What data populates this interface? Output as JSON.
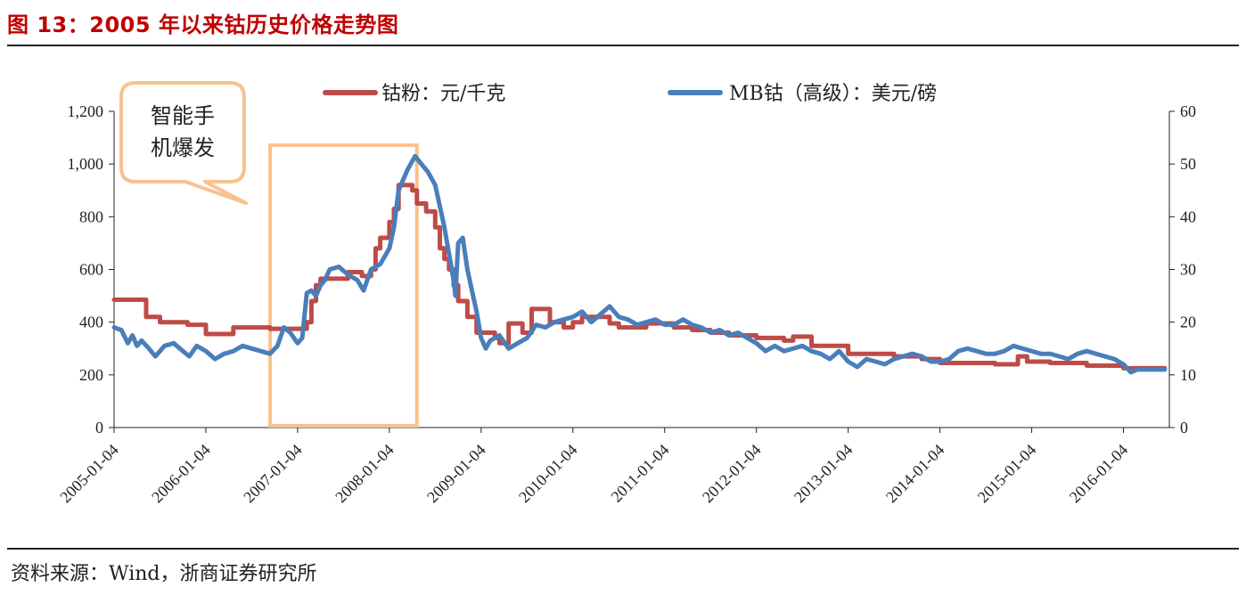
{
  "figure": {
    "title": "图 13：2005 年以来钴历史价格走势图",
    "source": "资料来源：Wind，浙商证券研究所"
  },
  "chart_data": {
    "type": "line",
    "title": "",
    "x_ticks": [
      "2005-01-04",
      "2006-01-04",
      "2007-01-04",
      "2008-01-04",
      "2009-01-04",
      "2010-01-04",
      "2011-01-04",
      "2012-01-04",
      "2013-01-04",
      "2014-01-04",
      "2015-01-04",
      "2016-01-04"
    ],
    "xlim": [
      2005.0,
      2016.5
    ],
    "left_axis": {
      "ylim": [
        0,
        1200
      ],
      "ticks": [
        "0",
        "200",
        "400",
        "600",
        "800",
        "1,000",
        "1,200"
      ]
    },
    "right_axis": {
      "ylim": [
        0,
        60
      ],
      "ticks": [
        "0",
        "10",
        "20",
        "30",
        "40",
        "50",
        "60"
      ]
    },
    "legend_position": "top",
    "series": [
      {
        "name": "钴粉：元/千克",
        "axis": "left",
        "color": "#be4b48",
        "points": [
          [
            2005.0,
            485
          ],
          [
            2005.35,
            485
          ],
          [
            2005.35,
            420
          ],
          [
            2005.5,
            420
          ],
          [
            2005.5,
            400
          ],
          [
            2005.8,
            400
          ],
          [
            2005.8,
            390
          ],
          [
            2006.0,
            390
          ],
          [
            2006.0,
            355
          ],
          [
            2006.3,
            355
          ],
          [
            2006.3,
            380
          ],
          [
            2006.7,
            380
          ],
          [
            2006.7,
            375
          ],
          [
            2007.1,
            375
          ],
          [
            2007.1,
            400
          ],
          [
            2007.15,
            400
          ],
          [
            2007.15,
            480
          ],
          [
            2007.2,
            480
          ],
          [
            2007.2,
            540
          ],
          [
            2007.25,
            540
          ],
          [
            2007.25,
            565
          ],
          [
            2007.55,
            565
          ],
          [
            2007.55,
            590
          ],
          [
            2007.7,
            590
          ],
          [
            2007.7,
            575
          ],
          [
            2007.8,
            575
          ],
          [
            2007.8,
            600
          ],
          [
            2007.85,
            600
          ],
          [
            2007.85,
            680
          ],
          [
            2007.9,
            680
          ],
          [
            2007.9,
            720
          ],
          [
            2008.0,
            720
          ],
          [
            2008.0,
            780
          ],
          [
            2008.05,
            780
          ],
          [
            2008.05,
            830
          ],
          [
            2008.1,
            830
          ],
          [
            2008.1,
            920
          ],
          [
            2008.25,
            920
          ],
          [
            2008.25,
            900
          ],
          [
            2008.3,
            900
          ],
          [
            2008.3,
            850
          ],
          [
            2008.4,
            850
          ],
          [
            2008.4,
            820
          ],
          [
            2008.5,
            820
          ],
          [
            2008.5,
            760
          ],
          [
            2008.55,
            760
          ],
          [
            2008.55,
            680
          ],
          [
            2008.6,
            680
          ],
          [
            2008.6,
            640
          ],
          [
            2008.65,
            640
          ],
          [
            2008.65,
            600
          ],
          [
            2008.7,
            600
          ],
          [
            2008.7,
            540
          ],
          [
            2008.75,
            540
          ],
          [
            2008.75,
            480
          ],
          [
            2008.85,
            480
          ],
          [
            2008.85,
            420
          ],
          [
            2008.95,
            420
          ],
          [
            2008.95,
            360
          ],
          [
            2009.15,
            360
          ],
          [
            2009.15,
            340
          ],
          [
            2009.2,
            340
          ],
          [
            2009.2,
            320
          ],
          [
            2009.3,
            320
          ],
          [
            2009.3,
            395
          ],
          [
            2009.45,
            395
          ],
          [
            2009.45,
            360
          ],
          [
            2009.55,
            360
          ],
          [
            2009.55,
            450
          ],
          [
            2009.75,
            450
          ],
          [
            2009.75,
            400
          ],
          [
            2009.9,
            400
          ],
          [
            2009.9,
            380
          ],
          [
            2010.0,
            380
          ],
          [
            2010.0,
            400
          ],
          [
            2010.1,
            400
          ],
          [
            2010.1,
            420
          ],
          [
            2010.4,
            420
          ],
          [
            2010.4,
            395
          ],
          [
            2010.5,
            395
          ],
          [
            2010.5,
            380
          ],
          [
            2010.8,
            380
          ],
          [
            2010.8,
            395
          ],
          [
            2011.1,
            395
          ],
          [
            2011.1,
            380
          ],
          [
            2011.3,
            380
          ],
          [
            2011.3,
            370
          ],
          [
            2011.5,
            370
          ],
          [
            2011.5,
            360
          ],
          [
            2011.7,
            360
          ],
          [
            2011.7,
            350
          ],
          [
            2012.0,
            350
          ],
          [
            2012.0,
            340
          ],
          [
            2012.3,
            340
          ],
          [
            2012.3,
            330
          ],
          [
            2012.4,
            330
          ],
          [
            2012.4,
            345
          ],
          [
            2012.6,
            345
          ],
          [
            2012.6,
            310
          ],
          [
            2013.0,
            310
          ],
          [
            2013.0,
            280
          ],
          [
            2013.5,
            280
          ],
          [
            2013.5,
            270
          ],
          [
            2013.8,
            270
          ],
          [
            2013.8,
            260
          ],
          [
            2014.0,
            260
          ],
          [
            2014.0,
            245
          ],
          [
            2014.6,
            245
          ],
          [
            2014.6,
            240
          ],
          [
            2014.85,
            240
          ],
          [
            2014.85,
            270
          ],
          [
            2014.95,
            270
          ],
          [
            2014.95,
            250
          ],
          [
            2015.2,
            250
          ],
          [
            2015.2,
            245
          ],
          [
            2015.6,
            245
          ],
          [
            2015.6,
            235
          ],
          [
            2016.0,
            235
          ],
          [
            2016.0,
            225
          ],
          [
            2016.45,
            225
          ]
        ]
      },
      {
        "name": "MB钴（高级）：美元/磅",
        "axis": "right",
        "color": "#4a7ebb",
        "points": [
          [
            2005.0,
            19
          ],
          [
            2005.08,
            18.5
          ],
          [
            2005.15,
            16
          ],
          [
            2005.2,
            17.5
          ],
          [
            2005.25,
            15.5
          ],
          [
            2005.3,
            16.5
          ],
          [
            2005.38,
            15
          ],
          [
            2005.45,
            13.5
          ],
          [
            2005.55,
            15.5
          ],
          [
            2005.65,
            16
          ],
          [
            2005.75,
            14.5
          ],
          [
            2005.82,
            13.5
          ],
          [
            2005.9,
            15.5
          ],
          [
            2006.0,
            14.5
          ],
          [
            2006.1,
            13
          ],
          [
            2006.2,
            14
          ],
          [
            2006.3,
            14.5
          ],
          [
            2006.4,
            15.5
          ],
          [
            2006.5,
            15
          ],
          [
            2006.6,
            14.5
          ],
          [
            2006.7,
            14
          ],
          [
            2006.78,
            15.5
          ],
          [
            2006.85,
            19
          ],
          [
            2006.92,
            18
          ],
          [
            2007.0,
            16
          ],
          [
            2007.05,
            17
          ],
          [
            2007.1,
            25.5
          ],
          [
            2007.15,
            26
          ],
          [
            2007.2,
            25
          ],
          [
            2007.25,
            27
          ],
          [
            2007.3,
            28
          ],
          [
            2007.35,
            30
          ],
          [
            2007.45,
            30.5
          ],
          [
            2007.55,
            29
          ],
          [
            2007.65,
            28
          ],
          [
            2007.72,
            26
          ],
          [
            2007.8,
            30
          ],
          [
            2007.9,
            31
          ],
          [
            2008.0,
            34
          ],
          [
            2008.05,
            38
          ],
          [
            2008.1,
            45
          ],
          [
            2008.15,
            47
          ],
          [
            2008.2,
            49
          ],
          [
            2008.28,
            51.5
          ],
          [
            2008.35,
            50
          ],
          [
            2008.42,
            48.5
          ],
          [
            2008.5,
            46
          ],
          [
            2008.55,
            42
          ],
          [
            2008.6,
            38
          ],
          [
            2008.65,
            33
          ],
          [
            2008.7,
            28
          ],
          [
            2008.72,
            25
          ],
          [
            2008.75,
            35
          ],
          [
            2008.8,
            36
          ],
          [
            2008.85,
            30
          ],
          [
            2008.9,
            26
          ],
          [
            2008.95,
            22
          ],
          [
            2009.0,
            17
          ],
          [
            2009.05,
            15
          ],
          [
            2009.1,
            16.5
          ],
          [
            2009.2,
            17.5
          ],
          [
            2009.3,
            15
          ],
          [
            2009.4,
            16
          ],
          [
            2009.5,
            17
          ],
          [
            2009.6,
            19.5
          ],
          [
            2009.7,
            19
          ],
          [
            2009.8,
            20
          ],
          [
            2009.9,
            20.5
          ],
          [
            2010.0,
            21
          ],
          [
            2010.1,
            22
          ],
          [
            2010.2,
            20
          ],
          [
            2010.3,
            21.5
          ],
          [
            2010.4,
            23
          ],
          [
            2010.5,
            21
          ],
          [
            2010.6,
            20.5
          ],
          [
            2010.7,
            19.5
          ],
          [
            2010.8,
            20
          ],
          [
            2010.9,
            20.5
          ],
          [
            2011.0,
            19.5
          ],
          [
            2011.1,
            19.5
          ],
          [
            2011.2,
            20.5
          ],
          [
            2011.3,
            19.5
          ],
          [
            2011.4,
            19
          ],
          [
            2011.5,
            18
          ],
          [
            2011.6,
            18.5
          ],
          [
            2011.7,
            17.5
          ],
          [
            2011.8,
            18
          ],
          [
            2011.9,
            17
          ],
          [
            2012.0,
            16
          ],
          [
            2012.1,
            14.5
          ],
          [
            2012.2,
            15.5
          ],
          [
            2012.3,
            14.5
          ],
          [
            2012.4,
            15
          ],
          [
            2012.5,
            15.5
          ],
          [
            2012.6,
            14.5
          ],
          [
            2012.7,
            14
          ],
          [
            2012.8,
            13
          ],
          [
            2012.9,
            14.5
          ],
          [
            2013.0,
            12.5
          ],
          [
            2013.1,
            11.5
          ],
          [
            2013.2,
            13
          ],
          [
            2013.3,
            12.5
          ],
          [
            2013.4,
            12
          ],
          [
            2013.5,
            13
          ],
          [
            2013.6,
            13.5
          ],
          [
            2013.7,
            14
          ],
          [
            2013.8,
            13.5
          ],
          [
            2013.9,
            12.5
          ],
          [
            2014.0,
            12.5
          ],
          [
            2014.1,
            13
          ],
          [
            2014.2,
            14.5
          ],
          [
            2014.3,
            15
          ],
          [
            2014.4,
            14.5
          ],
          [
            2014.5,
            14
          ],
          [
            2014.6,
            14
          ],
          [
            2014.7,
            14.5
          ],
          [
            2014.8,
            15.5
          ],
          [
            2014.9,
            15
          ],
          [
            2015.0,
            14.5
          ],
          [
            2015.1,
            14
          ],
          [
            2015.2,
            14
          ],
          [
            2015.3,
            13.5
          ],
          [
            2015.4,
            13
          ],
          [
            2015.5,
            14
          ],
          [
            2015.6,
            14.5
          ],
          [
            2015.7,
            14
          ],
          [
            2015.8,
            13.5
          ],
          [
            2015.9,
            13
          ],
          [
            2016.0,
            12
          ],
          [
            2016.08,
            10.5
          ],
          [
            2016.15,
            11
          ],
          [
            2016.25,
            11
          ],
          [
            2016.35,
            11
          ],
          [
            2016.45,
            11
          ]
        ]
      }
    ],
    "annotations": {
      "callout_label": [
        "智能手",
        "机爆发"
      ],
      "highlight_box": {
        "x_start": 2006.7,
        "x_end": 2008.3
      }
    },
    "colors": {
      "callout_border": "#f7c28f",
      "axis": "#222222"
    }
  }
}
